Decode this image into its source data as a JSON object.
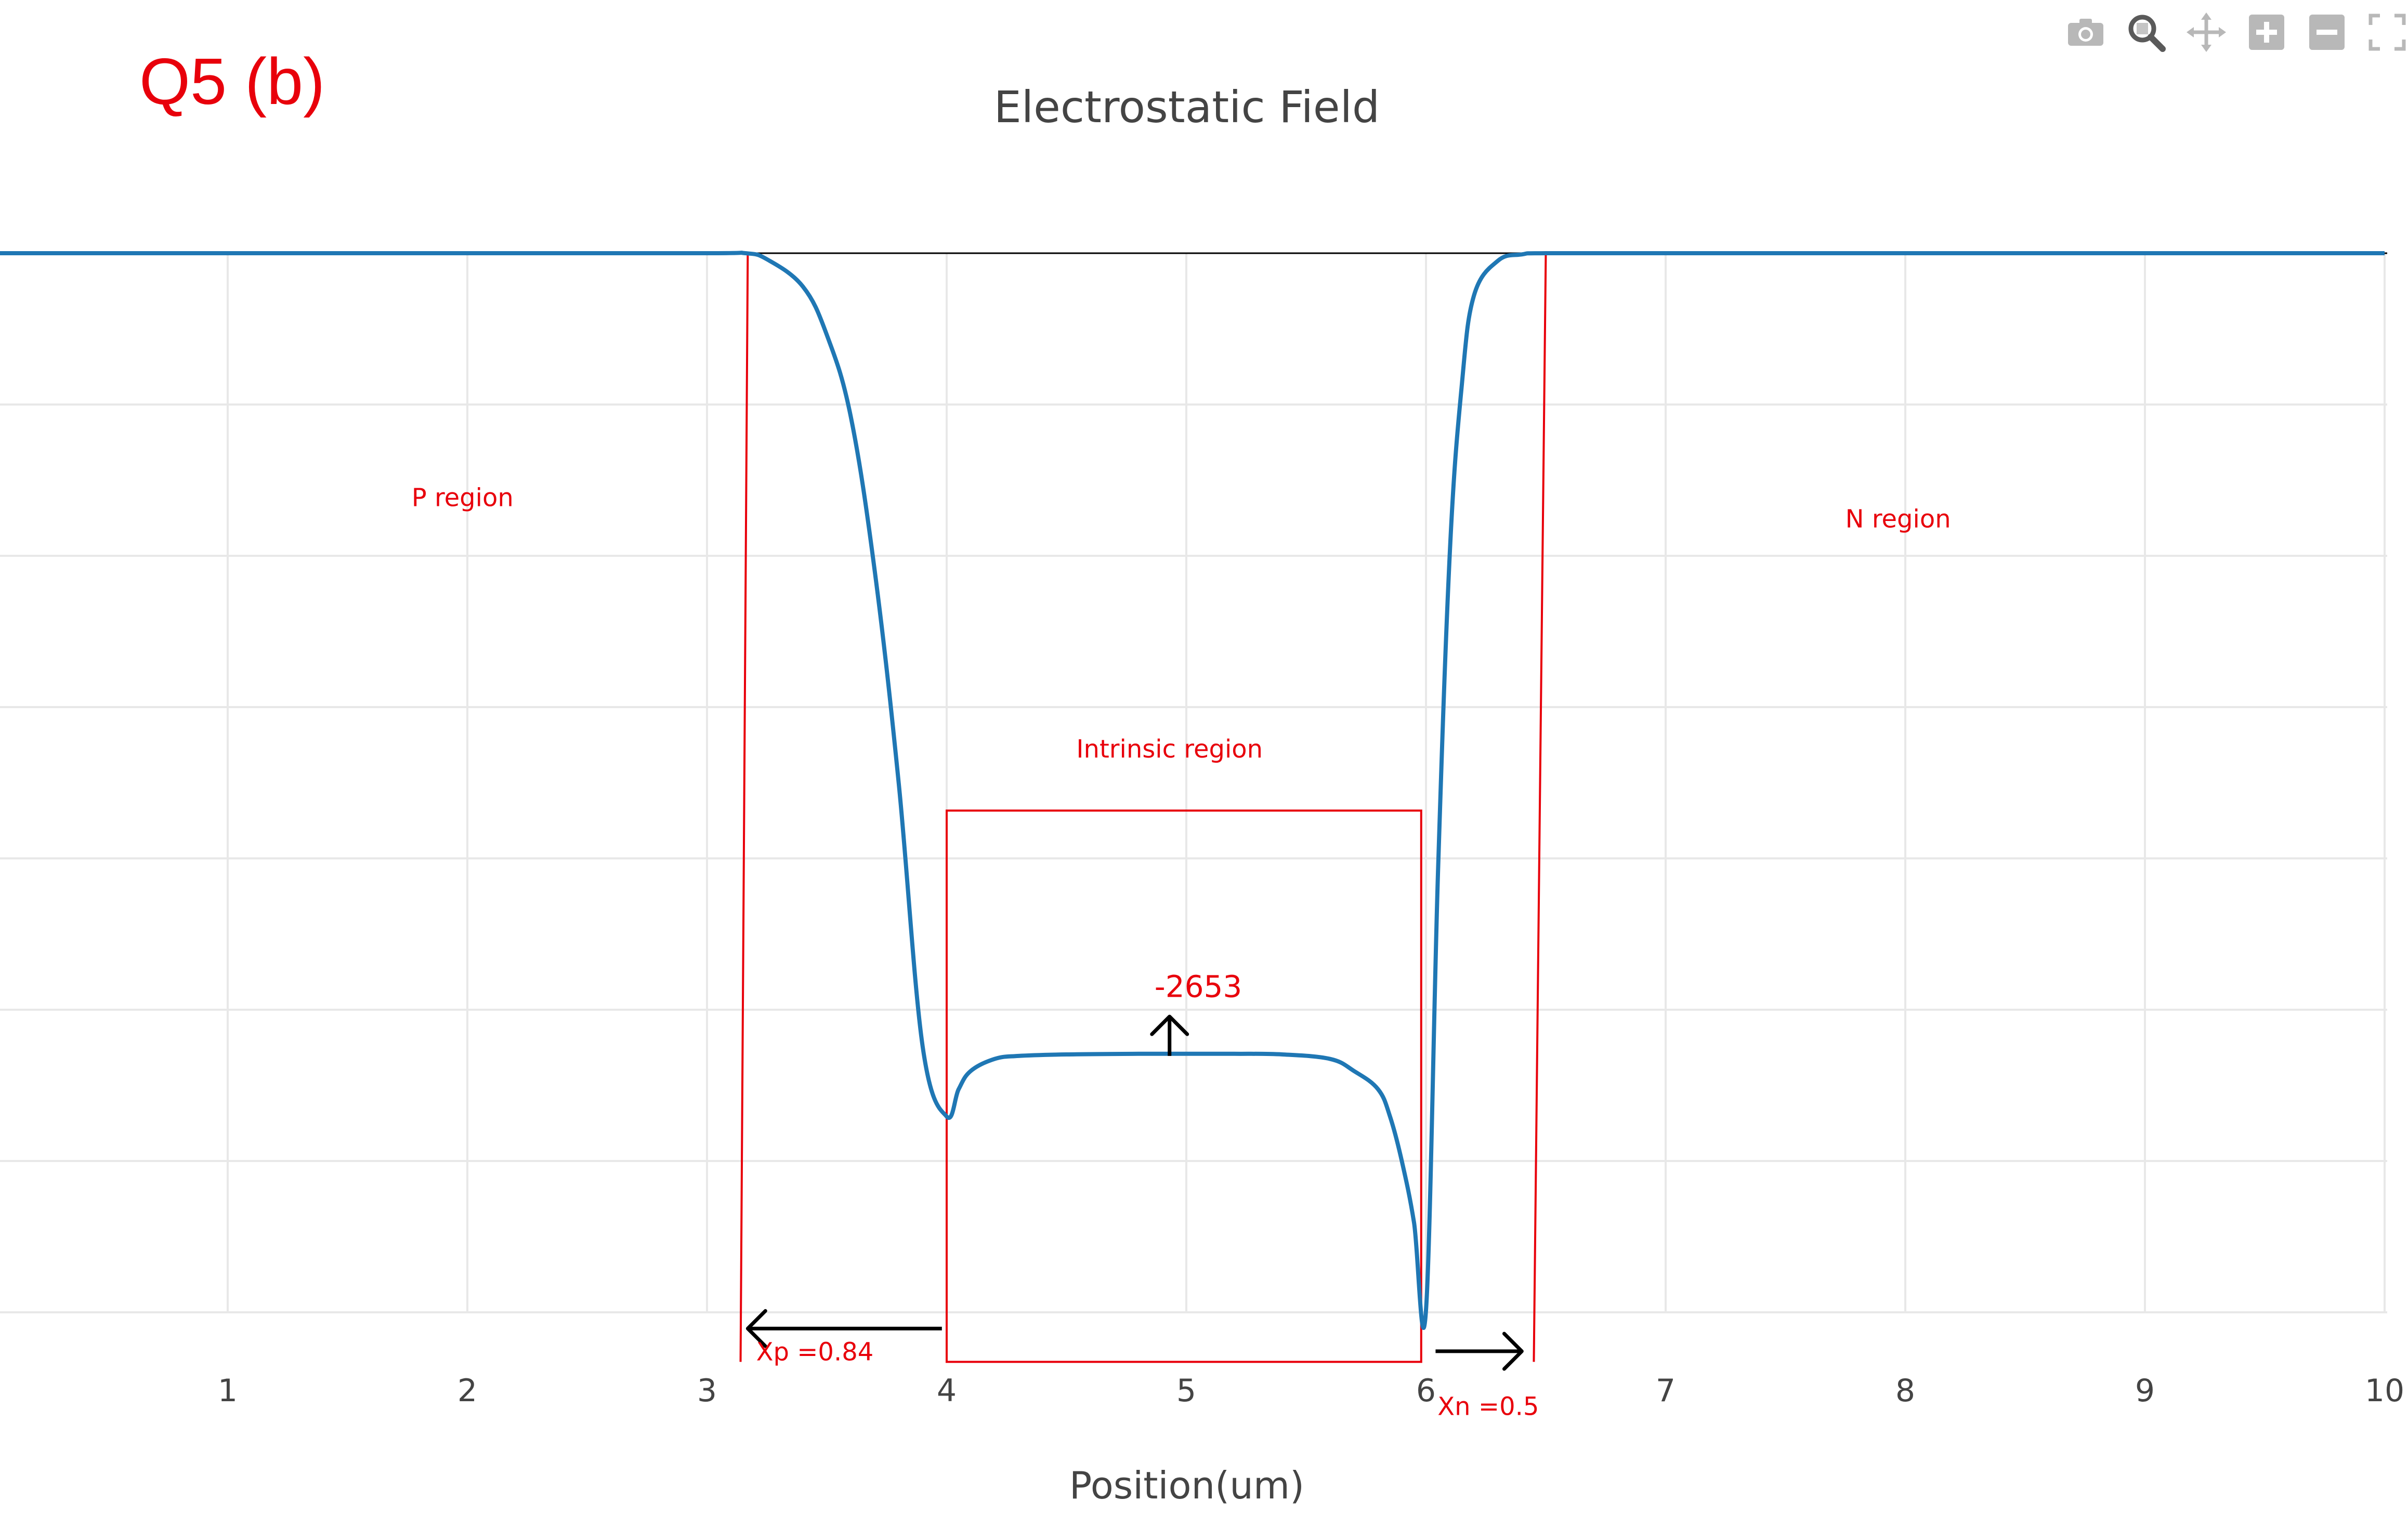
{
  "question_label": "Q5 (b)",
  "colors": {
    "series": "#1f77b4",
    "annotation": "#e8000b",
    "arrow": "#000000",
    "grid": "#e8e8e8",
    "zero_line": "#000000",
    "title": "#444444",
    "modebar_icon": "#b8b8b8",
    "modebar_icon_active": "#5a5a5a"
  },
  "modebar": [
    {
      "icon": "camera-icon",
      "title": ""
    },
    {
      "icon": "zoom-icon",
      "title": ""
    },
    {
      "icon": "pan-icon",
      "title": ""
    },
    {
      "icon": "zoom-in-icon",
      "title": ""
    },
    {
      "icon": "zoom-out-icon",
      "title": ""
    },
    {
      "icon": "autoscale-icon",
      "title": ""
    }
  ],
  "chart_data": {
    "type": "line",
    "title": "Electrostatic Field",
    "xlabel": "Position(um)",
    "ylabel": "",
    "xlim": [
      0.05,
      10
    ],
    "ylim": [
      -3340,
      150
    ],
    "xticks": [
      "1",
      "2",
      "3",
      "4",
      "5",
      "6",
      "7",
      "8",
      "9",
      "10"
    ],
    "grid": true,
    "legend": "none",
    "series": [
      {
        "x": [
          0,
          1,
          2,
          3,
          3.16,
          3.25,
          3.4,
          3.5,
          3.6,
          3.7,
          3.8,
          3.9,
          4.0,
          4.05,
          4.1,
          4.2,
          4.3,
          4.5,
          4.8,
          5.0,
          5.2,
          5.4,
          5.6,
          5.7,
          5.8,
          5.85,
          5.9,
          5.95,
          6.0,
          6.05,
          6.1,
          6.15,
          6.2,
          6.3,
          6.4,
          6.5,
          7,
          8,
          9,
          10
        ],
        "y": [
          0,
          0,
          0,
          0,
          0,
          -20,
          -110,
          -270,
          -540,
          -1050,
          -1750,
          -2620,
          -2850,
          -2760,
          -2700,
          -2660,
          -2650,
          -2645,
          -2643,
          -2643,
          -2643,
          -2645,
          -2660,
          -2700,
          -2760,
          -2850,
          -3000,
          -3200,
          -3490,
          -2050,
          -980,
          -430,
          -140,
          -25,
          -4,
          0,
          0,
          0,
          0,
          0
        ]
      }
    ],
    "annotations": [
      {
        "text": "-2653",
        "x": 5.05,
        "y": -2455
      },
      {
        "text": "P region",
        "x": 1.98,
        "y": -835
      },
      {
        "text": "N region",
        "x": 7.97,
        "y": -905
      },
      {
        "text": "Intrinsic region",
        "x": 4.93,
        "y": -1665
      },
      {
        "text": "Xp =0.84",
        "x": 3.45,
        "y": -3655
      },
      {
        "text": "Xn =0.5",
        "x": 6.26,
        "y": -3835
      }
    ],
    "intrinsic_box": {
      "x0": 4.0,
      "x1": 5.98,
      "y0": -1840,
      "y1": -3660
    },
    "depletion_edges": [
      {
        "x_top": 3.17,
        "x_bottom": 3.14
      },
      {
        "x_top": 6.5,
        "x_bottom": 6.45
      }
    ],
    "arrows": [
      {
        "from": [
          3.98,
          -3550
        ],
        "to": [
          3.17,
          -3550
        ]
      },
      {
        "from": [
          6.04,
          -3625
        ],
        "to": [
          6.4,
          -3625
        ]
      },
      {
        "from": [
          4.93,
          -2650
        ],
        "to": [
          4.93,
          -2520
        ]
      }
    ]
  }
}
